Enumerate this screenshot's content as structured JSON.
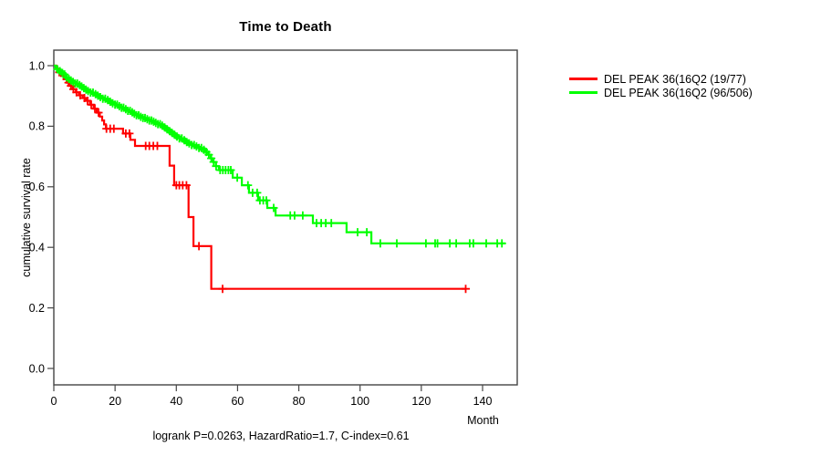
{
  "chart_data": {
    "type": "line",
    "subtype": "kaplan-meier-step-curve",
    "title": "Time to Death",
    "xlabel": "Month",
    "ylabel": "cumulative survival rate",
    "annotation": "logrank P=0.0263, HazardRatio=1.7, C-index=0.61",
    "xlim": [
      0,
      151
    ],
    "ylim": [
      0,
      1
    ],
    "xticks": [
      0,
      20,
      40,
      60,
      80,
      100,
      120,
      140
    ],
    "yticks": [
      0.0,
      0.2,
      0.4,
      0.6,
      0.8,
      1.0
    ],
    "grid": false,
    "legend_position": "right-outside",
    "series": [
      {
        "id": "group1",
        "name": "DEL PEAK 36(16Q2 (19/77)",
        "color": "#ff0000",
        "events_over_total": "19/77",
        "end_month": 134.5,
        "steps": [
          [
            0,
            1.0
          ],
          [
            0.8,
            0.99
          ],
          [
            1.6,
            0.978
          ],
          [
            2.4,
            0.966
          ],
          [
            3.2,
            0.955
          ],
          [
            4.2,
            0.944
          ],
          [
            5.2,
            0.933
          ],
          [
            6.2,
            0.922
          ],
          [
            7.2,
            0.912
          ],
          [
            8.2,
            0.902
          ],
          [
            9.4,
            0.893
          ],
          [
            10.6,
            0.884
          ],
          [
            11.8,
            0.871
          ],
          [
            13,
            0.858
          ],
          [
            14,
            0.845
          ],
          [
            15,
            0.832
          ],
          [
            15.8,
            0.819
          ],
          [
            16.4,
            0.806
          ],
          [
            17,
            0.792
          ],
          [
            22.6,
            0.776
          ],
          [
            25,
            0.755
          ],
          [
            26.5,
            0.735
          ],
          [
            37.8,
            0.67
          ],
          [
            39.3,
            0.605
          ],
          [
            44,
            0.5
          ],
          [
            45.6,
            0.404
          ],
          [
            51.4,
            0.263
          ]
        ],
        "censors": [
          1.8,
          4.8,
          5.6,
          6.4,
          7.4,
          8.6,
          10,
          11,
          12.2,
          13.4,
          14.6,
          17.2,
          18.4,
          19.6,
          23.5,
          24.7,
          30,
          31.2,
          32.5,
          33.8,
          40,
          41,
          42.1,
          43.3,
          47.4,
          55.1,
          134.5
        ]
      },
      {
        "id": "group2",
        "name": "DEL PEAK 36(16Q2 (96/506)",
        "color": "#00ff00",
        "events_over_total": "96/506",
        "end_month": 147.5,
        "steps": [
          [
            0,
            1.0
          ],
          [
            0.6,
            0.994
          ],
          [
            1.2,
            0.988
          ],
          [
            1.8,
            0.982
          ],
          [
            2.4,
            0.976
          ],
          [
            3,
            0.971
          ],
          [
            3.6,
            0.966
          ],
          [
            4.2,
            0.961
          ],
          [
            4.8,
            0.956
          ],
          [
            5.4,
            0.951
          ],
          [
            6.2,
            0.946
          ],
          [
            7,
            0.941
          ],
          [
            7.8,
            0.936
          ],
          [
            8.6,
            0.931
          ],
          [
            9.4,
            0.926
          ],
          [
            10.2,
            0.921
          ],
          [
            11,
            0.916
          ],
          [
            12,
            0.911
          ],
          [
            13,
            0.906
          ],
          [
            14,
            0.901
          ],
          [
            15,
            0.896
          ],
          [
            16,
            0.891
          ],
          [
            17,
            0.886
          ],
          [
            18,
            0.881
          ],
          [
            19,
            0.876
          ],
          [
            20,
            0.871
          ],
          [
            21,
            0.866
          ],
          [
            22,
            0.861
          ],
          [
            23,
            0.856
          ],
          [
            24,
            0.851
          ],
          [
            25,
            0.846
          ],
          [
            26,
            0.841
          ],
          [
            27,
            0.836
          ],
          [
            28,
            0.831
          ],
          [
            29,
            0.827
          ],
          [
            30,
            0.823
          ],
          [
            31,
            0.819
          ],
          [
            32,
            0.815
          ],
          [
            33,
            0.811
          ],
          [
            34,
            0.807
          ],
          [
            34.8,
            0.802
          ],
          [
            35.6,
            0.796
          ],
          [
            36.4,
            0.79
          ],
          [
            37.2,
            0.784
          ],
          [
            38,
            0.778
          ],
          [
            39,
            0.772
          ],
          [
            40,
            0.766
          ],
          [
            41,
            0.76
          ],
          [
            42,
            0.754
          ],
          [
            43,
            0.748
          ],
          [
            44,
            0.743
          ],
          [
            45,
            0.738
          ],
          [
            46,
            0.733
          ],
          [
            47.2,
            0.728
          ],
          [
            48.4,
            0.722
          ],
          [
            49.6,
            0.715
          ],
          [
            50.4,
            0.706
          ],
          [
            51.2,
            0.694
          ],
          [
            52,
            0.682
          ],
          [
            52.9,
            0.668
          ],
          [
            53.9,
            0.655
          ],
          [
            58.4,
            0.63
          ],
          [
            61.4,
            0.605
          ],
          [
            63.7,
            0.58
          ],
          [
            66.7,
            0.555
          ],
          [
            69.7,
            0.53
          ],
          [
            72.4,
            0.505
          ],
          [
            84.6,
            0.48
          ],
          [
            95.6,
            0.45
          ],
          [
            103.7,
            0.413
          ]
        ],
        "censors": [
          1.2,
          2,
          2.8,
          3.5,
          4.2,
          4.9,
          5.6,
          6.3,
          7,
          7.7,
          8.4,
          9.1,
          9.8,
          10.5,
          11.2,
          12,
          12.8,
          13.6,
          14.4,
          15.2,
          16,
          16.8,
          17.6,
          18.4,
          19.2,
          20,
          20.7,
          21.4,
          22.1,
          22.8,
          23.5,
          24.2,
          24.9,
          25.6,
          26.3,
          27,
          27.7,
          28.4,
          29.1,
          29.8,
          30.5,
          31.2,
          31.9,
          32.6,
          33.3,
          34,
          34.7,
          35.4,
          36.2,
          37,
          37.8,
          38.6,
          39.4,
          40.2,
          41,
          41.8,
          42.6,
          43.4,
          44.2,
          45,
          45.8,
          46.6,
          47.4,
          48.2,
          49,
          49.8,
          50.6,
          51.4,
          52.2,
          53,
          54.3,
          55.2,
          56.1,
          57,
          57.8,
          59.9,
          63.4,
          64.9,
          66.4,
          67.3,
          68.4,
          69.4,
          71.8,
          77.2,
          78.6,
          81.3,
          85.8,
          87.3,
          88.8,
          90.6,
          99.2,
          102.2,
          106.6,
          112,
          121.5,
          124.5,
          125.3,
          129.3,
          131.4,
          135.8,
          137,
          141.2,
          144.8,
          146.3
        ]
      }
    ]
  }
}
